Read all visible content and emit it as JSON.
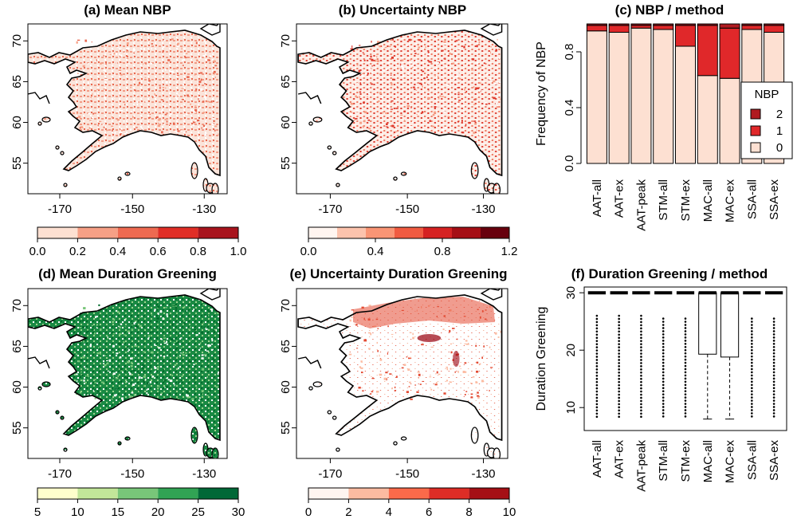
{
  "panels": {
    "a": {
      "title": "(a) Mean NBP"
    },
    "b": {
      "title": "(b) Uncertainty NBP"
    },
    "c": {
      "title": "(c) NBP / method"
    },
    "d": {
      "title": "(d) Mean Duration Greening"
    },
    "e": {
      "title": "(e) Uncertainty Duration Greening"
    },
    "f": {
      "title": "(f) Duration Greening / method"
    }
  },
  "map_axes": {
    "x_ticks": [
      "-170",
      "-150",
      "-130"
    ],
    "y_ticks": [
      "70",
      "65",
      "60",
      "55"
    ]
  },
  "colorbars": {
    "a": {
      "labels": [
        "0.0",
        "0.2",
        "0.4",
        "0.6",
        "0.8",
        "1.0"
      ],
      "colors": [
        "#fde0d2",
        "#f6a086",
        "#ee6a51",
        "#e02e26",
        "#a8141d"
      ]
    },
    "b": {
      "labels": [
        "0.0",
        "0.4",
        "0.8",
        "1.2"
      ],
      "colors": [
        "#fff5f0",
        "#fcc3ad",
        "#f99575",
        "#f05b41",
        "#d52222",
        "#a50f15",
        "#67000d"
      ]
    },
    "d": {
      "labels": [
        "5",
        "10",
        "15",
        "20",
        "25",
        "30"
      ],
      "colors": [
        "#ffffcc",
        "#c2e699",
        "#78c679",
        "#31a354",
        "#006837"
      ]
    },
    "e": {
      "labels": [
        "0",
        "2",
        "4",
        "6",
        "8",
        "10"
      ],
      "colors": [
        "#fff5f0",
        "#fcbba1",
        "#fb6a4a",
        "#de2d26",
        "#a50f15"
      ]
    }
  },
  "colors": {
    "map_a": "#e8674f",
    "map_b": "#de3a2e",
    "map_d": "#006d2c",
    "map_e": "#e34a33",
    "map_e_dark": "#99000d",
    "nbp0": "#fde0d2",
    "nbp1": "#e0282a",
    "nbp2": "#b01a20"
  },
  "chart_data": [
    {
      "type": "bar",
      "title": "(c) NBP / method",
      "ylabel": "Frequency of NBP",
      "categories": [
        "AAT-all",
        "AAT-ex",
        "AAT-peak",
        "STM-all",
        "STM-ex",
        "MAC-all",
        "MAC-ex",
        "SSA-all",
        "SSA-ex"
      ],
      "yticks": [
        "0.0",
        "0.4",
        "0.8"
      ],
      "ylim": [
        0,
        1
      ],
      "stacked": true,
      "series": [
        {
          "name": "0",
          "values": [
            0.95,
            0.94,
            0.97,
            0.96,
            0.84,
            0.63,
            0.61,
            0.96,
            0.94
          ]
        },
        {
          "name": "1",
          "values": [
            0.04,
            0.05,
            0.02,
            0.03,
            0.15,
            0.36,
            0.36,
            0.03,
            0.05
          ]
        },
        {
          "name": "2",
          "values": [
            0.01,
            0.01,
            0.01,
            0.01,
            0.01,
            0.01,
            0.03,
            0.01,
            0.01
          ]
        }
      ],
      "legend": {
        "title": "NBP",
        "entries": [
          "2",
          "1",
          "0"
        ],
        "position": "right"
      }
    },
    {
      "type": "box",
      "title": "(f) Duration Greening / method",
      "ylabel": "Duration Greening",
      "categories": [
        "AAT-all",
        "AAT-ex",
        "AAT-peak",
        "STM-all",
        "STM-ex",
        "MAC-all",
        "MAC-ex",
        "SSA-all",
        "SSA-ex"
      ],
      "yticks": [
        "10",
        "20",
        "30"
      ],
      "ylim": [
        6,
        31
      ],
      "boxes": [
        {
          "q1": 30,
          "median": 30,
          "q3": 30,
          "whisker_low": 30,
          "whisker_high": 30,
          "outlier_range": [
            8,
            26
          ]
        },
        {
          "q1": 30,
          "median": 30,
          "q3": 30,
          "whisker_low": 30,
          "whisker_high": 30,
          "outlier_range": [
            8,
            26
          ]
        },
        {
          "q1": 30,
          "median": 30,
          "q3": 30,
          "whisker_low": 30,
          "whisker_high": 30,
          "outlier_range": [
            8,
            26
          ]
        },
        {
          "q1": 30,
          "median": 30,
          "q3": 30,
          "whisker_low": 30,
          "whisker_high": 30,
          "outlier_range": [
            8,
            25.5
          ]
        },
        {
          "q1": 30,
          "median": 30,
          "q3": 30,
          "whisker_low": 30,
          "whisker_high": 30,
          "outlier_range": [
            8,
            25.5
          ]
        },
        {
          "q1": 19.3,
          "median": 30,
          "q3": 30,
          "whisker_low": 8,
          "whisker_high": 30,
          "outlier_range": null
        },
        {
          "q1": 18.8,
          "median": 30,
          "q3": 30,
          "whisker_low": 8,
          "whisker_high": 30,
          "outlier_range": null
        },
        {
          "q1": 30,
          "median": 30,
          "q3": 30,
          "whisker_low": 30,
          "whisker_high": 30,
          "outlier_range": [
            8,
            25.5
          ]
        },
        {
          "q1": 30,
          "median": 30,
          "q3": 30,
          "whisker_low": 30,
          "whisker_high": 30,
          "outlier_range": [
            8,
            25.5
          ]
        }
      ]
    }
  ]
}
